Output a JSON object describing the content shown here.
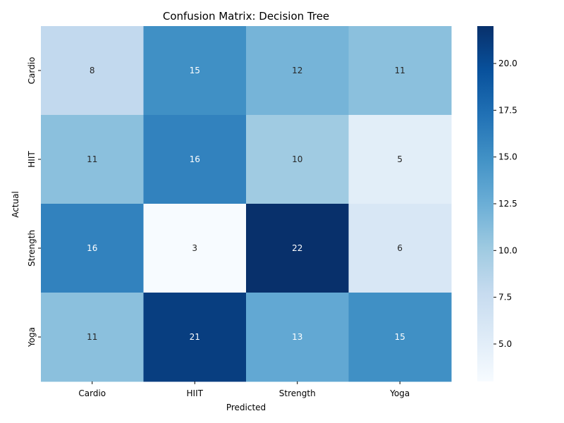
{
  "chart_data": {
    "type": "heatmap",
    "title": "Confusion Matrix: Decision Tree",
    "xlabel": "Predicted",
    "ylabel": "Actual",
    "x_categories": [
      "Cardio",
      "HIIT",
      "Strength",
      "Yoga"
    ],
    "y_categories": [
      "Cardio",
      "HIIT",
      "Strength",
      "Yoga"
    ],
    "values": [
      [
        8,
        15,
        12,
        11
      ],
      [
        11,
        16,
        10,
        5
      ],
      [
        16,
        3,
        22,
        6
      ],
      [
        11,
        21,
        13,
        15
      ]
    ],
    "colormap": "Blues",
    "colorbar": {
      "range": [
        3,
        22
      ],
      "ticks": [
        5.0,
        7.5,
        10.0,
        12.5,
        15.0,
        17.5,
        20.0
      ],
      "tick_labels": [
        "5.0",
        "7.5",
        "10.0",
        "12.5",
        "15.0",
        "17.5",
        "20.0"
      ]
    },
    "grid": false
  }
}
